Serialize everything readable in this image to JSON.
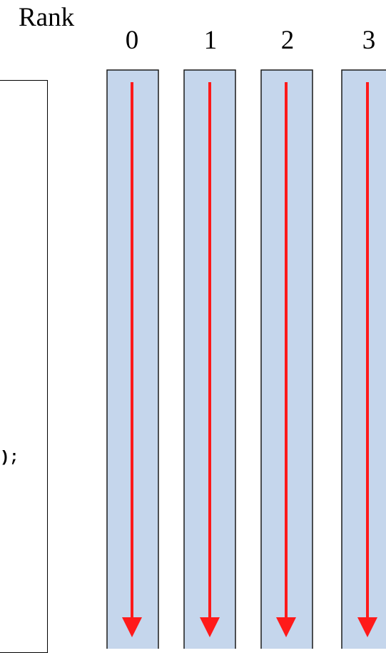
{
  "rank_label": "Rank",
  "ranks": [
    "0",
    "1",
    "2",
    "3"
  ],
  "code_visible_fragment": ");",
  "colors": {
    "lane_fill": "#c5d6ec",
    "lane_stroke": "#1a1a1a",
    "arrow": "#ff1a1a"
  }
}
